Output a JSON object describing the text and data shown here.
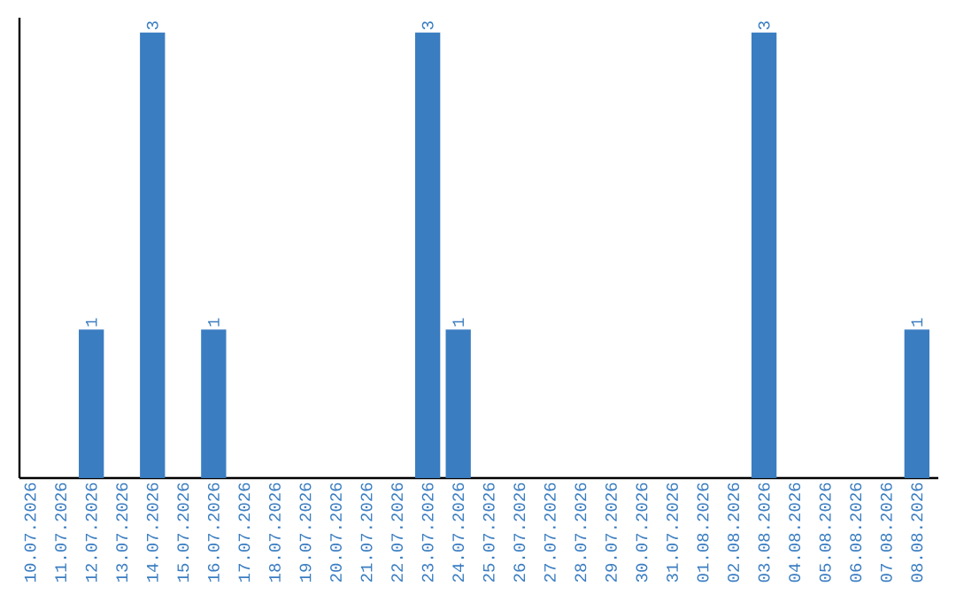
{
  "chart_data": {
    "type": "bar",
    "categories": [
      "10.07.2026",
      "11.07.2026",
      "12.07.2026",
      "13.07.2026",
      "14.07.2026",
      "15.07.2026",
      "16.07.2026",
      "17.07.2026",
      "18.07.2026",
      "19.07.2026",
      "20.07.2026",
      "21.07.2026",
      "22.07.2026",
      "23.07.2026",
      "24.07.2026",
      "25.07.2026",
      "26.07.2026",
      "27.07.2026",
      "28.07.2026",
      "29.07.2026",
      "30.07.2026",
      "31.07.2026",
      "01.08.2026",
      "02.08.2026",
      "03.08.2026",
      "04.08.2026",
      "05.08.2026",
      "06.08.2026",
      "07.08.2026",
      "08.08.2026"
    ],
    "values": [
      0,
      0,
      1,
      0,
      3,
      0,
      1,
      0,
      0,
      0,
      0,
      0,
      0,
      3,
      1,
      0,
      0,
      0,
      0,
      0,
      0,
      0,
      0,
      0,
      3,
      0,
      0,
      0,
      0,
      1
    ],
    "value_labels": [
      null,
      null,
      "1",
      null,
      "3",
      null,
      "1",
      null,
      null,
      null,
      null,
      null,
      null,
      "3",
      "1",
      null,
      null,
      null,
      null,
      null,
      null,
      null,
      null,
      null,
      "3",
      null,
      null,
      null,
      null,
      "1"
    ],
    "color": "#3a7dc1",
    "ylim": [
      0,
      3.1
    ],
    "tick_labels": "x"
  }
}
